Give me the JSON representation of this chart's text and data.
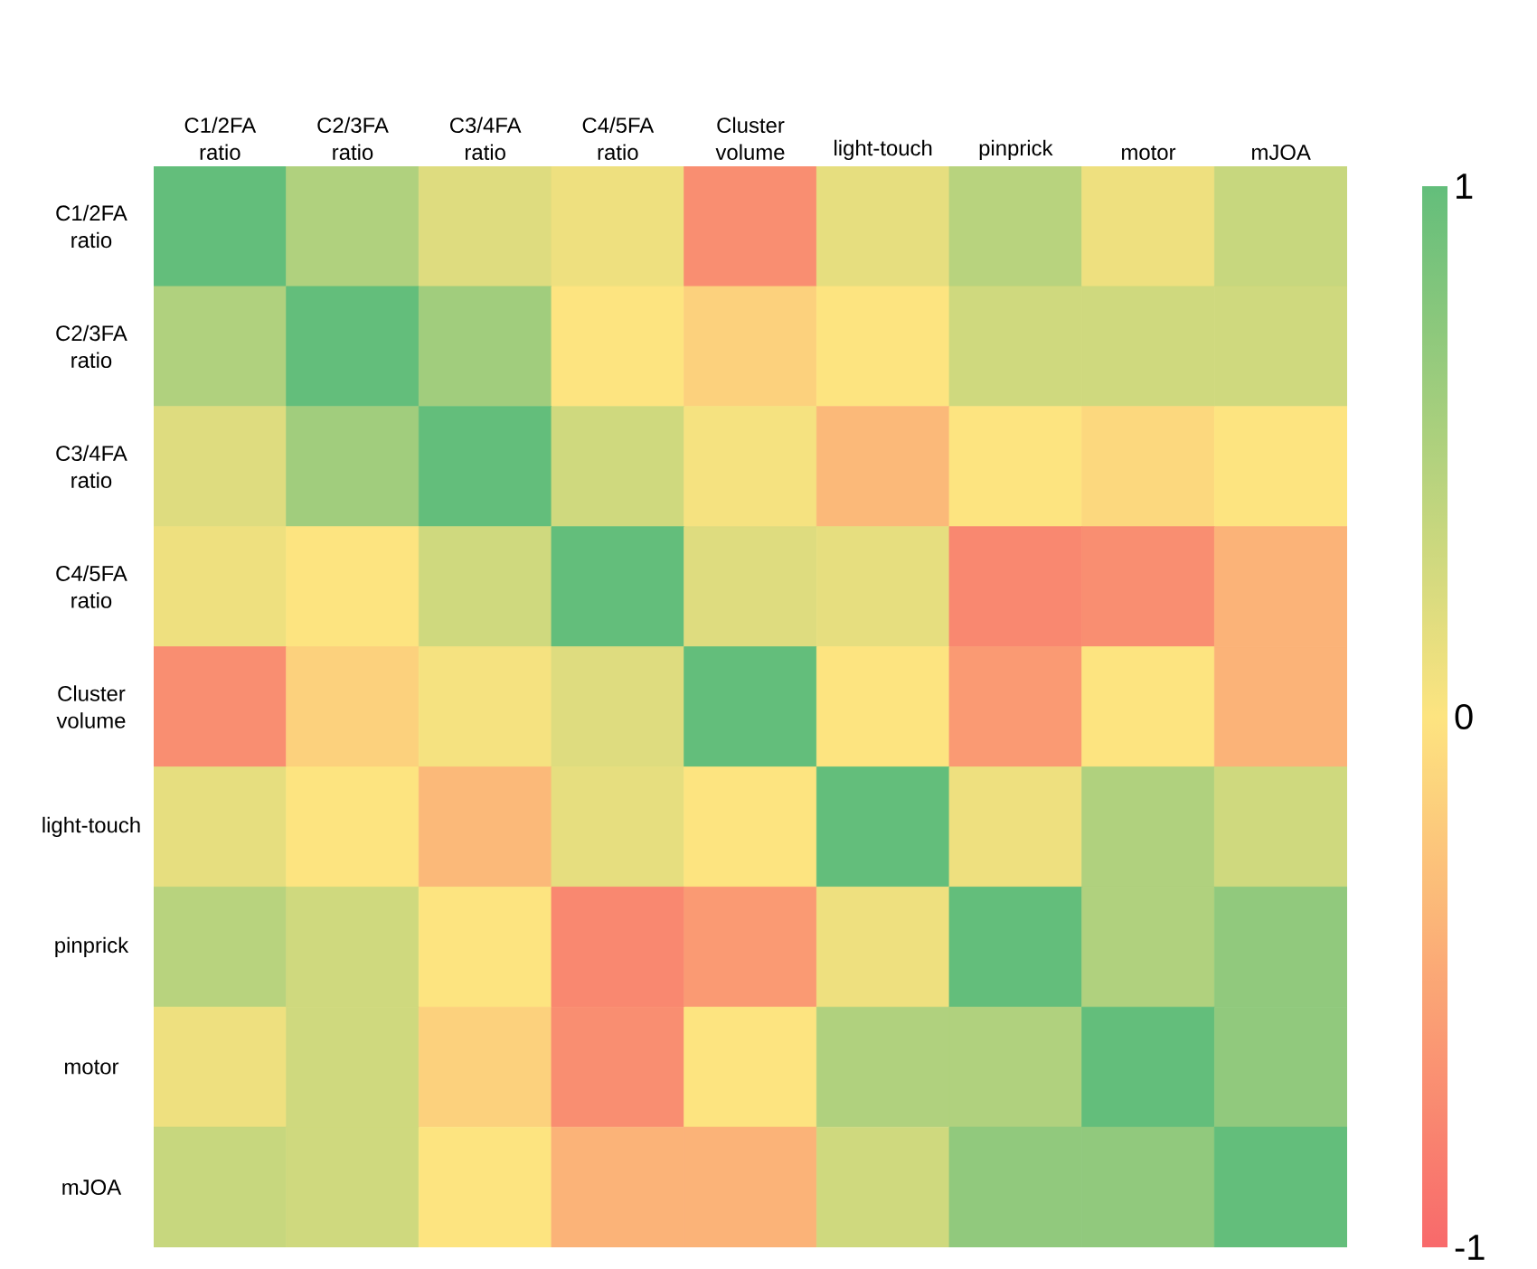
{
  "chart_data": {
    "type": "heatmap",
    "categories": [
      "C1/2FA ratio",
      "C2/3FA ratio",
      "C3/4FA ratio",
      "C4/5FA ratio",
      "Cluster volume",
      "light-touch",
      "pinprick",
      "motor",
      "mJOA"
    ],
    "y_categories": [
      "C1/2FA ratio",
      "C2/3FA ratio",
      "C3/4FA ratio",
      "C4/5FA ratio",
      "Cluster volume",
      "light-touch",
      "pinprick",
      "motor",
      "mJOA"
    ],
    "cells": [
      [
        1,
        0.5,
        0.2,
        0.1,
        -0.7,
        0.15,
        0.45,
        0.1,
        0.35
      ],
      [
        0.5,
        1,
        0.6,
        0,
        -0.15,
        0,
        0.3,
        0.3,
        0.3
      ],
      [
        0.2,
        0.6,
        1,
        0.3,
        0.05,
        -0.35,
        0,
        -0.1,
        0
      ],
      [
        0.1,
        0,
        0.3,
        1,
        0.2,
        0.15,
        -0.75,
        -0.7,
        -0.4
      ],
      [
        -0.7,
        -0.15,
        0.05,
        0.2,
        1,
        0,
        -0.6,
        0,
        -0.4
      ],
      [
        0.15,
        0,
        -0.35,
        0.15,
        0,
        1,
        0.1,
        0.5,
        0.3
      ],
      [
        0.45,
        0.3,
        0,
        -0.75,
        -0.6,
        0.1,
        1,
        0.5,
        0.7
      ],
      [
        0.1,
        0.3,
        -0.15,
        -0.7,
        0,
        0.5,
        0.5,
        1,
        0.7
      ],
      [
        0.35,
        0.3,
        0,
        -0.4,
        -0.4,
        0.3,
        0.7,
        0.7,
        1
      ]
    ],
    "clim": [
      -1,
      1
    ],
    "cticks": [
      -1,
      0,
      1
    ]
  }
}
